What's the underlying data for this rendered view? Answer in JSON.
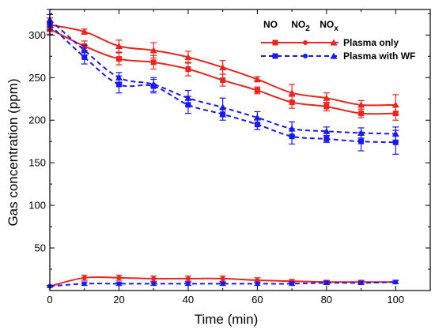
{
  "chart_data": {
    "type": "line",
    "xlabel": "Time (min)",
    "ylabel": "Gas concentration (ppm)",
    "xlim": [
      0,
      110
    ],
    "ylim": [
      0,
      330
    ],
    "xticks": [
      0,
      20,
      40,
      60,
      80,
      100
    ],
    "yticks": [
      50,
      100,
      150,
      200,
      250,
      300
    ],
    "grid": false,
    "legend": {
      "placement": "top-right",
      "column_headers": [
        "NO",
        "NO",
        "NO"
      ],
      "column_subscripts": [
        "",
        "2",
        "x"
      ],
      "rows": [
        "Plasma only",
        "Plasma with WF"
      ]
    },
    "x": [
      0,
      10,
      20,
      30,
      40,
      50,
      60,
      70,
      80,
      90,
      100
    ],
    "series": [
      {
        "group": "Plasma only",
        "gas": "NO",
        "color": "#e8261f",
        "dash": "solid",
        "marker": "square",
        "values": [
          307,
          287,
          272,
          268,
          260,
          247,
          235,
          221,
          216,
          208,
          208
        ],
        "errors": [
          6,
          6,
          7,
          8,
          8,
          7,
          4,
          7,
          5,
          5,
          8
        ]
      },
      {
        "group": "Plasma only",
        "gas": "NO2",
        "color": "#e8261f",
        "dash": "solid",
        "marker": "circle",
        "values": [
          5,
          15,
          15,
          14,
          14,
          14,
          12,
          11,
          10,
          10,
          10
        ],
        "errors": [
          1,
          3,
          3,
          3,
          3,
          3,
          3,
          2,
          2,
          2,
          2
        ]
      },
      {
        "group": "Plasma only",
        "gas": "NOx",
        "color": "#e8261f",
        "dash": "solid",
        "marker": "triangle",
        "values": [
          312,
          304,
          287,
          282,
          274,
          262,
          248,
          232,
          226,
          218,
          218
        ],
        "errors": [
          8,
          3,
          7,
          9,
          7,
          8,
          3,
          10,
          6,
          5,
          12
        ]
      },
      {
        "group": "Plasma with WF",
        "gas": "NO",
        "color": "#1a1ae6",
        "dash": "dashed",
        "marker": "square",
        "values": [
          312,
          274,
          242,
          240,
          218,
          207,
          195,
          181,
          178,
          175,
          174
        ],
        "errors": [
          12,
          8,
          10,
          8,
          10,
          7,
          6,
          9,
          4,
          11,
          14
        ]
      },
      {
        "group": "Plasma with WF",
        "gas": "NO2",
        "color": "#1a1ae6",
        "dash": "dashed",
        "marker": "circle",
        "values": [
          5,
          8,
          8,
          8,
          8,
          8,
          8,
          8,
          9,
          9,
          10
        ],
        "errors": [
          1,
          2,
          2,
          2,
          2,
          2,
          2,
          2,
          2,
          2,
          2
        ]
      },
      {
        "group": "Plasma with WF",
        "gas": "NOx",
        "color": "#1a1ae6",
        "dash": "dashed",
        "marker": "triangle",
        "values": [
          318,
          282,
          250,
          242,
          226,
          215,
          203,
          190,
          187,
          185,
          184
        ],
        "errors": [
          12,
          6,
          6,
          8,
          9,
          11,
          7,
          8,
          5,
          6,
          8
        ]
      }
    ]
  }
}
